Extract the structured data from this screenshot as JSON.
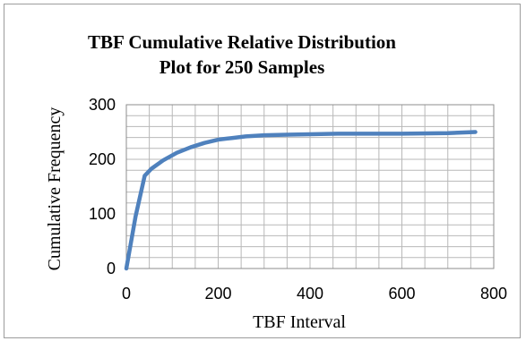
{
  "chart_data": {
    "type": "line",
    "title": "TBF Cumulative Relative Distribution",
    "subtitle": "Plot for 250 Samples",
    "xlabel": "TBF Interval",
    "ylabel": "Cumulative Frequency",
    "xlim": [
      0,
      800
    ],
    "ylim": [
      0,
      300
    ],
    "x_ticks": [
      0,
      200,
      400,
      600,
      800
    ],
    "y_ticks": [
      0,
      100,
      200,
      300
    ],
    "grid": true,
    "legend": "none",
    "series": [
      {
        "color": "#4F81BD",
        "x": [
          0,
          20,
          40,
          55,
          80,
          110,
          140,
          170,
          200,
          230,
          260,
          300,
          350,
          400,
          460,
          520,
          600,
          700,
          760
        ],
        "y": [
          0,
          95,
          170,
          183,
          198,
          212,
          222,
          230,
          236,
          239,
          242,
          244,
          245,
          246,
          247,
          247,
          247,
          248,
          250
        ]
      }
    ]
  }
}
